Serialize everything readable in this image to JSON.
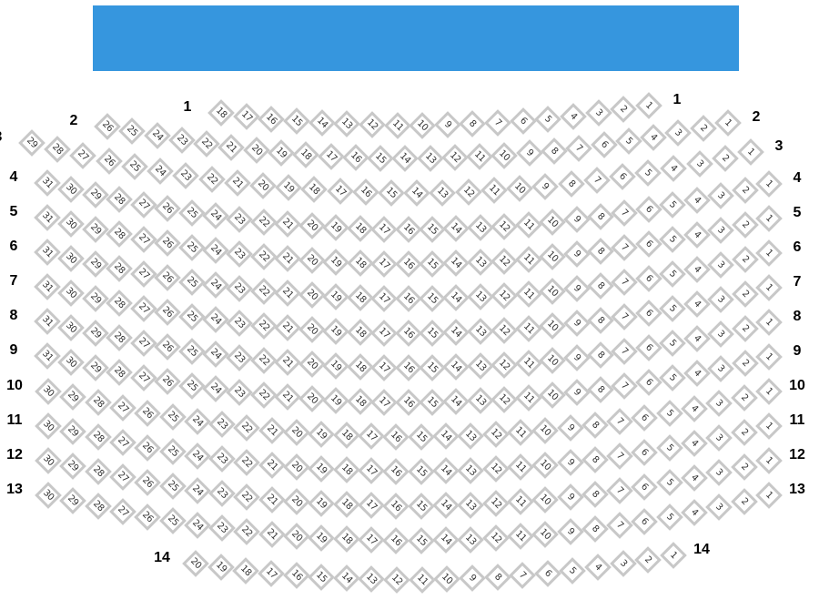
{
  "stage": {
    "label": "",
    "color": "#3696de"
  },
  "seat_style": {
    "border": "#c8c8c8",
    "fill": "#ffffff",
    "text": "#333333"
  },
  "rows": [
    {
      "label": "1",
      "seats": [
        "18",
        "17",
        "16",
        "15",
        "14",
        "13",
        "12",
        "11",
        "10",
        "9",
        "8",
        "7",
        "6",
        "5",
        "4",
        "3",
        "2",
        "1"
      ]
    },
    {
      "label": "2",
      "seats": [
        "26",
        "25",
        "24",
        "23",
        "22",
        "21",
        "20",
        "19",
        "18",
        "17",
        "16",
        "15",
        "14",
        "13",
        "12",
        "11",
        "10",
        "9",
        "8",
        "7",
        "6",
        "5",
        "4",
        "3",
        "2",
        "1"
      ]
    },
    {
      "label": "3",
      "seats": [
        "29",
        "28",
        "27",
        "26",
        "25",
        "24",
        "23",
        "22",
        "21",
        "20",
        "19",
        "18",
        "17",
        "16",
        "15",
        "14",
        "13",
        "12",
        "11",
        "10",
        "9",
        "8",
        "7",
        "6",
        "5",
        "4",
        "3",
        "2",
        "1"
      ]
    },
    {
      "label": "4",
      "seats": [
        "31",
        "30",
        "29",
        "28",
        "27",
        "26",
        "25",
        "24",
        "23",
        "22",
        "21",
        "20",
        "19",
        "18",
        "17",
        "16",
        "15",
        "14",
        "13",
        "12",
        "11",
        "10",
        "9",
        "8",
        "7",
        "6",
        "5",
        "4",
        "3",
        "2",
        "1"
      ]
    },
    {
      "label": "5",
      "seats": [
        "31",
        "30",
        "29",
        "28",
        "27",
        "26",
        "25",
        "24",
        "23",
        "22",
        "21",
        "20",
        "19",
        "18",
        "17",
        "16",
        "15",
        "14",
        "13",
        "12",
        "11",
        "10",
        "9",
        "8",
        "7",
        "6",
        "5",
        "4",
        "3",
        "2",
        "1"
      ]
    },
    {
      "label": "6",
      "seats": [
        "31",
        "30",
        "29",
        "28",
        "27",
        "26",
        "25",
        "24",
        "23",
        "22",
        "21",
        "20",
        "19",
        "18",
        "17",
        "16",
        "15",
        "14",
        "13",
        "12",
        "11",
        "10",
        "9",
        "8",
        "7",
        "6",
        "5",
        "4",
        "3",
        "2",
        "1"
      ]
    },
    {
      "label": "7",
      "seats": [
        "31",
        "30",
        "29",
        "28",
        "27",
        "26",
        "25",
        "24",
        "23",
        "22",
        "21",
        "20",
        "19",
        "18",
        "17",
        "16",
        "15",
        "14",
        "13",
        "12",
        "11",
        "10",
        "9",
        "8",
        "7",
        "6",
        "5",
        "4",
        "3",
        "2",
        "1"
      ]
    },
    {
      "label": "8",
      "seats": [
        "31",
        "30",
        "29",
        "28",
        "27",
        "26",
        "25",
        "24",
        "23",
        "22",
        "21",
        "20",
        "19",
        "18",
        "17",
        "16",
        "15",
        "14",
        "13",
        "12",
        "11",
        "10",
        "9",
        "8",
        "7",
        "6",
        "5",
        "4",
        "3",
        "2",
        "1"
      ]
    },
    {
      "label": "9",
      "seats": [
        "31",
        "30",
        "29",
        "28",
        "27",
        "26",
        "25",
        "24",
        "23",
        "22",
        "21",
        "20",
        "19",
        "18",
        "17",
        "16",
        "15",
        "14",
        "13",
        "12",
        "11",
        "10",
        "9",
        "8",
        "7",
        "6",
        "5",
        "4",
        "3",
        "2",
        "1"
      ]
    },
    {
      "label": "10",
      "seats": [
        "30",
        "29",
        "28",
        "27",
        "26",
        "25",
        "24",
        "23",
        "22",
        "21",
        "20",
        "19",
        "18",
        "17",
        "16",
        "15",
        "14",
        "13",
        "12",
        "11",
        "10",
        "9",
        "8",
        "7",
        "6",
        "5",
        "4",
        "3",
        "2",
        "1"
      ]
    },
    {
      "label": "11",
      "seats": [
        "30",
        "29",
        "28",
        "27",
        "26",
        "25",
        "24",
        "23",
        "22",
        "21",
        "20",
        "19",
        "18",
        "17",
        "16",
        "15",
        "14",
        "13",
        "12",
        "11",
        "10",
        "9",
        "8",
        "7",
        "6",
        "5",
        "4",
        "3",
        "2",
        "1"
      ]
    },
    {
      "label": "12",
      "seats": [
        "30",
        "29",
        "28",
        "27",
        "26",
        "25",
        "24",
        "23",
        "22",
        "21",
        "20",
        "19",
        "18",
        "17",
        "16",
        "15",
        "14",
        "13",
        "12",
        "11",
        "10",
        "9",
        "8",
        "7",
        "6",
        "5",
        "4",
        "3",
        "2",
        "1"
      ]
    },
    {
      "label": "13",
      "seats": [
        "30",
        "29",
        "28",
        "27",
        "26",
        "25",
        "24",
        "23",
        "22",
        "21",
        "20",
        "19",
        "18",
        "17",
        "16",
        "15",
        "14",
        "13",
        "12",
        "11",
        "10",
        "9",
        "8",
        "7",
        "6",
        "5",
        "4",
        "3",
        "2",
        "1"
      ]
    },
    {
      "label": "14",
      "seats": [
        "20",
        "19",
        "18",
        "17",
        "16",
        "15",
        "14",
        "13",
        "12",
        "11",
        "10",
        "9",
        "8",
        "7",
        "6",
        "5",
        "4",
        "3",
        "2",
        "1"
      ]
    }
  ]
}
